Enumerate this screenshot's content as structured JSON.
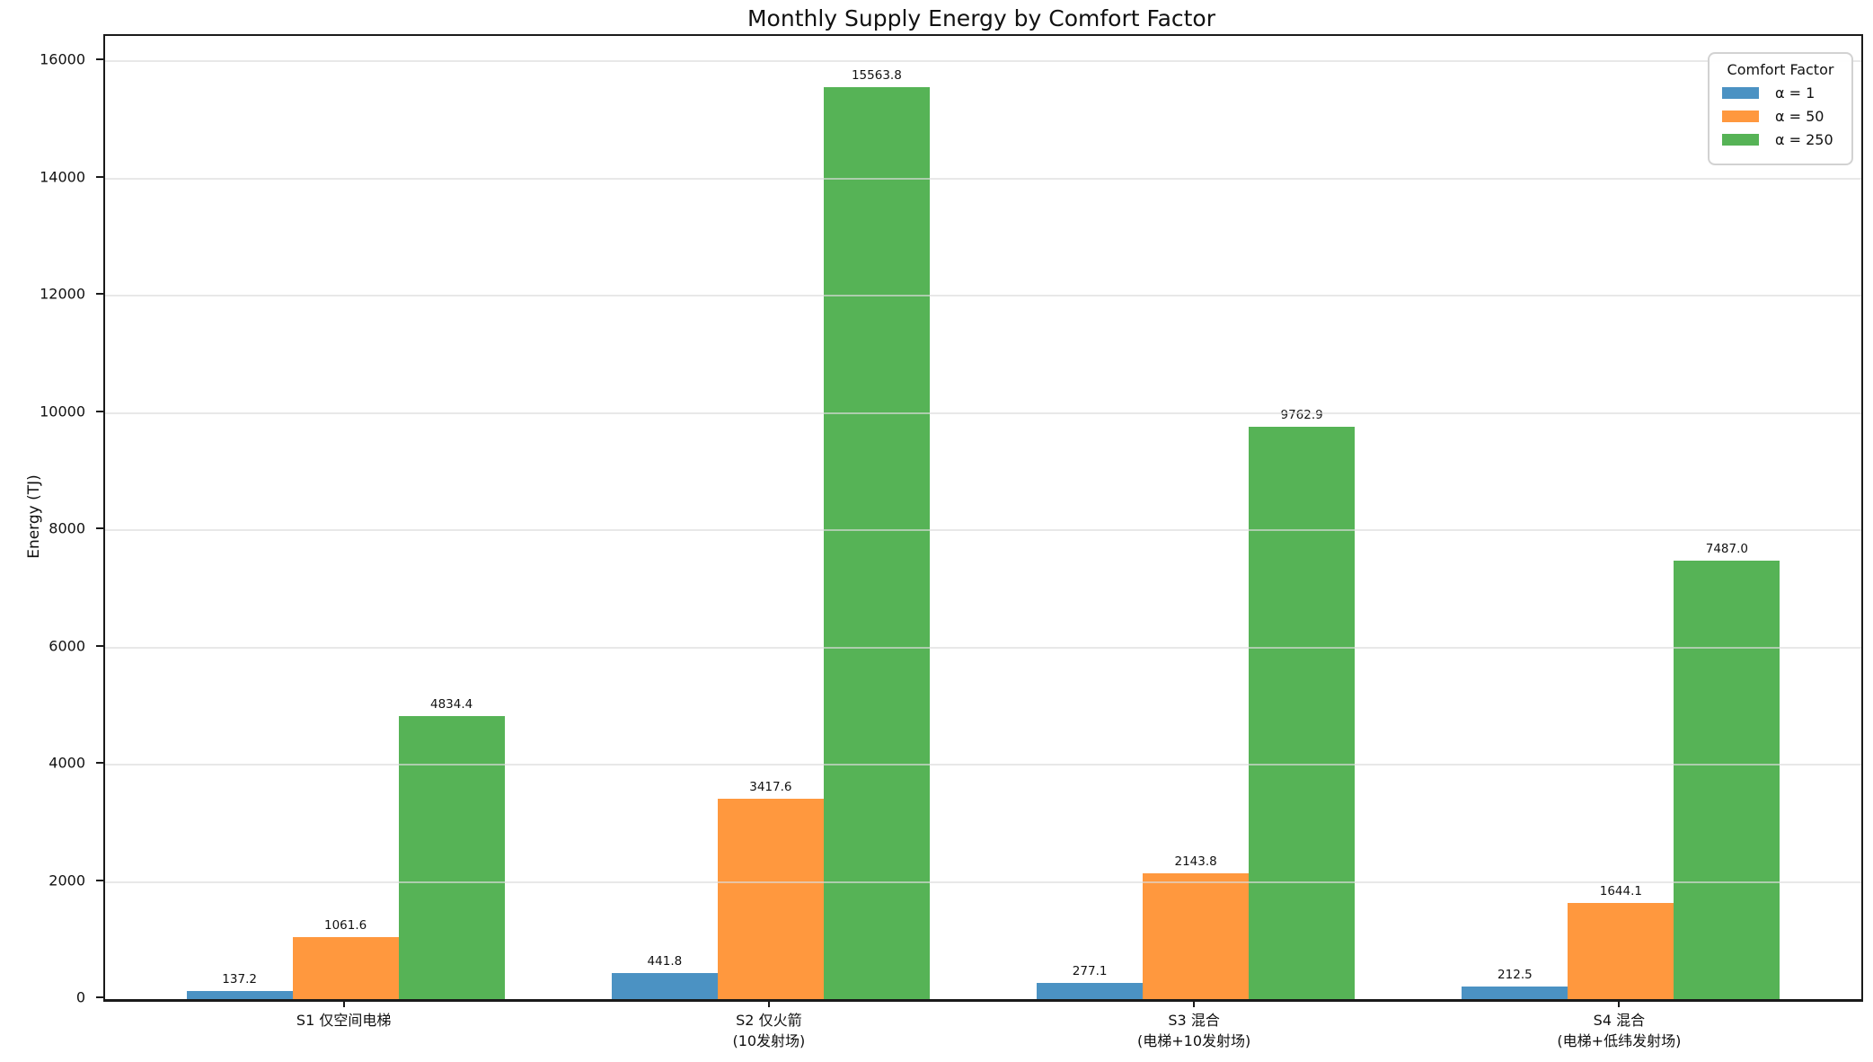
{
  "title": "Monthly Supply Energy by Comfort Factor",
  "ylabel": "Energy (TJ)",
  "legend": {
    "title": "Comfort Factor",
    "entries": [
      {
        "label": "α = 1",
        "color": "#4B92C3"
      },
      {
        "label": "α = 50",
        "color": "#FF983E"
      },
      {
        "label": "α = 250",
        "color": "#56B356"
      }
    ]
  },
  "colors": {
    "alpha1_blue": "#4B92C3",
    "alpha50_orange": "#FF983E",
    "alpha250_green": "#56B356",
    "gridline": "#E6E6E6",
    "axis": "#1a1a1a"
  },
  "chart_data": {
    "type": "bar",
    "title": "Monthly Supply Energy by Comfort Factor",
    "xlabel": "",
    "ylabel": "Energy (TJ)",
    "categories": [
      [
        "S1 仅空间电梯"
      ],
      [
        "S2 仅火箭",
        "(10发射场)"
      ],
      [
        "S3 混合",
        "(电梯+10发射场)"
      ],
      [
        "S4 混合",
        "(电梯+低纬发射场)"
      ]
    ],
    "series": [
      {
        "name": "α = 1",
        "color": "#4B92C3",
        "values": [
          137.2,
          441.8,
          277.1,
          212.5
        ]
      },
      {
        "name": "α = 50",
        "color": "#FF983E",
        "values": [
          1061.6,
          3417.6,
          2143.8,
          1644.1
        ]
      },
      {
        "name": "α = 250",
        "color": "#56B356",
        "values": [
          4834.4,
          15563.8,
          9762.9,
          7487.0
        ]
      }
    ],
    "bar_value_labels": [
      [
        "137.2",
        "1061.6",
        "4834.4"
      ],
      [
        "441.8",
        "3417.6",
        "15563.8"
      ],
      [
        "277.1",
        "2143.8",
        "9762.9"
      ],
      [
        "212.5",
        "1644.1",
        "7487.0"
      ]
    ],
    "yticks": [
      0,
      2000,
      4000,
      6000,
      8000,
      10000,
      12000,
      14000,
      16000
    ],
    "ylim": [
      0,
      16430
    ],
    "grid": true,
    "grid_axis": "y",
    "legend_title": "Comfort Factor",
    "legend_position": "upper right"
  }
}
